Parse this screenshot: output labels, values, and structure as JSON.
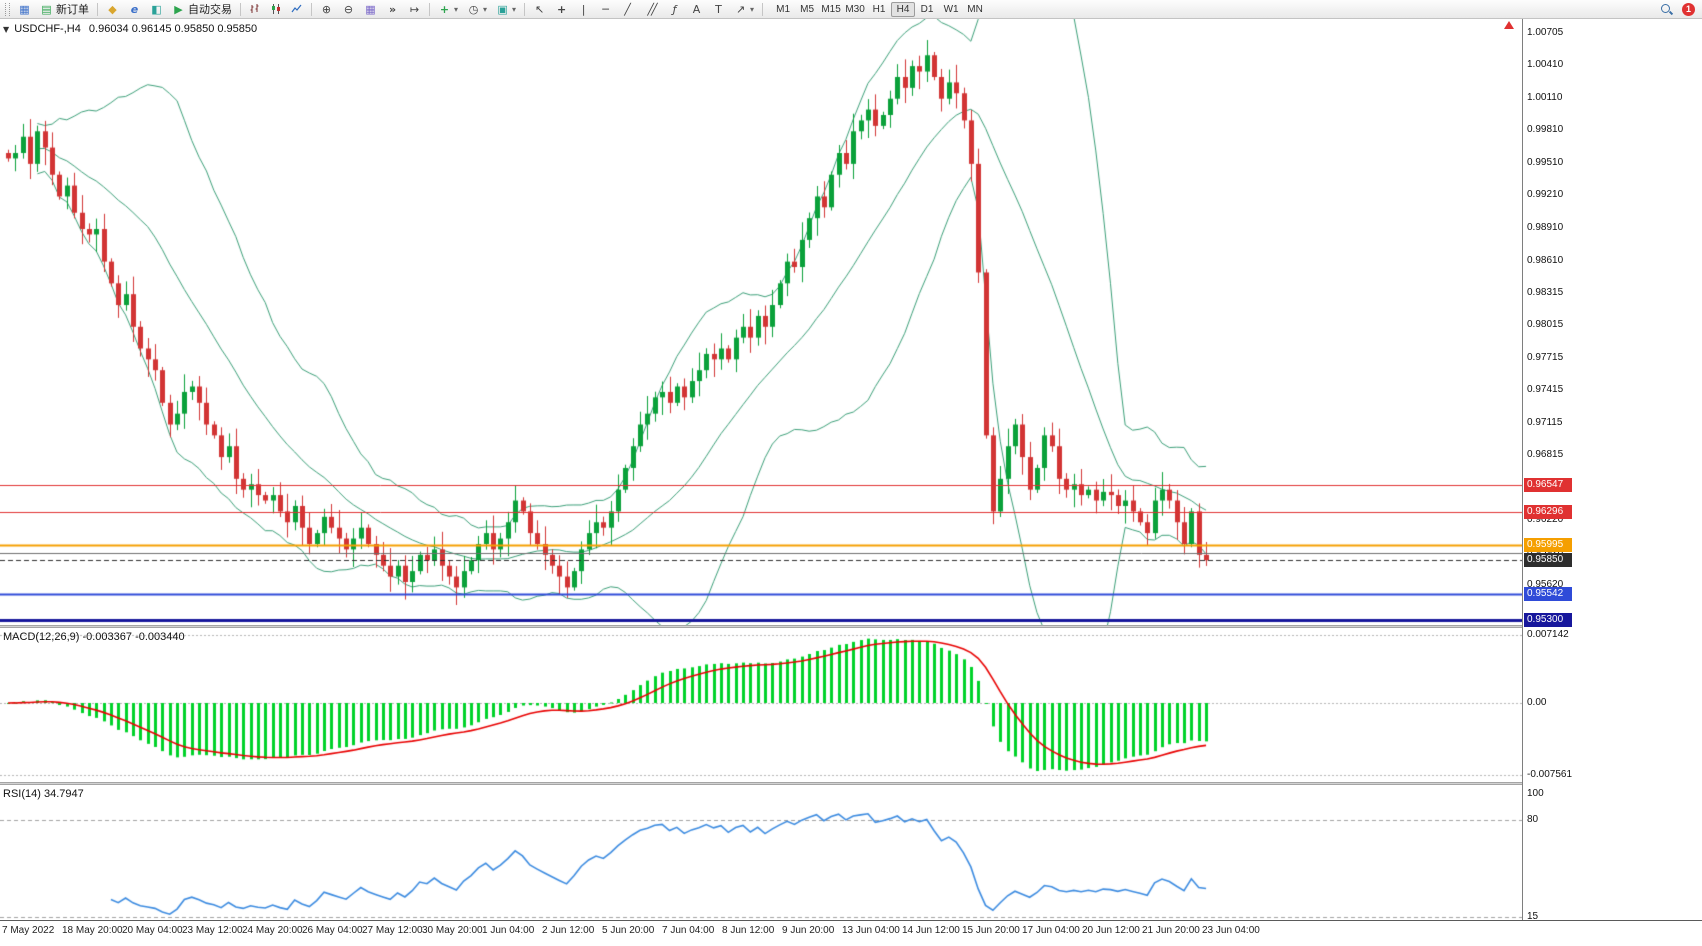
{
  "toolbar": {
    "new_order_label": "新订单",
    "autotrading_label": "自动交易",
    "text_tool_label": "A",
    "text_label_tool_label": "T",
    "timeframes": [
      "M1",
      "M5",
      "M15",
      "M30",
      "H1",
      "H4",
      "D1",
      "W1",
      "MN"
    ],
    "active_timeframe": "H4",
    "notification_count": "1"
  },
  "icons": {
    "chart_window": "▦",
    "new_order": "▤",
    "market_watch": "◆",
    "metaeditor": "e",
    "strategy_tester": "◧",
    "autotrading_play": "▶",
    "zoom_in": "⊕",
    "zoom_out": "⊖",
    "tile_windows": "▦",
    "auto_scroll": "»",
    "chart_shift": "↦",
    "add_indicator": "+",
    "periods_clock": "◷",
    "templates": "▣",
    "cursor": "↖",
    "crosshair": "+",
    "vertical_line": "|",
    "horizontal_line": "─",
    "trendline": "╱",
    "channel": "╱╱",
    "fibonacci": "ƒ",
    "arrows": "↗",
    "caret": "▾",
    "collapse": "▼"
  },
  "chart_data": [
    {
      "type": "candlestick",
      "title": "USDCHF-,H4",
      "ohlc_text": "0.96034 0.96145 0.95850 0.95850",
      "ohlc_display": {
        "open": "0.96034",
        "high": "0.96145",
        "low": "0.95850",
        "close": "0.95850"
      },
      "ylim": [
        0.953,
        1.00705
      ],
      "closes": [
        0.9955,
        0.996,
        0.9975,
        0.995,
        0.998,
        0.9965,
        0.994,
        0.992,
        0.993,
        0.9905,
        0.989,
        0.9885,
        0.989,
        0.986,
        0.984,
        0.982,
        0.983,
        0.98,
        0.978,
        0.977,
        0.976,
        0.973,
        0.971,
        0.972,
        0.974,
        0.9745,
        0.973,
        0.971,
        0.97,
        0.968,
        0.969,
        0.966,
        0.965,
        0.9655,
        0.9645,
        0.964,
        0.9645,
        0.963,
        0.962,
        0.9635,
        0.9615,
        0.96,
        0.961,
        0.9625,
        0.9615,
        0.9605,
        0.9595,
        0.9605,
        0.9615,
        0.96,
        0.959,
        0.958,
        0.957,
        0.958,
        0.9565,
        0.9575,
        0.959,
        0.9585,
        0.9595,
        0.958,
        0.957,
        0.956,
        0.9575,
        0.9585,
        0.96,
        0.961,
        0.9595,
        0.9605,
        0.962,
        0.964,
        0.963,
        0.961,
        0.96,
        0.959,
        0.958,
        0.957,
        0.956,
        0.9575,
        0.9595,
        0.961,
        0.962,
        0.9615,
        0.963,
        0.965,
        0.967,
        0.969,
        0.971,
        0.972,
        0.9735,
        0.974,
        0.973,
        0.9745,
        0.9735,
        0.975,
        0.976,
        0.9775,
        0.977,
        0.978,
        0.977,
        0.979,
        0.98,
        0.979,
        0.981,
        0.98,
        0.982,
        0.984,
        0.986,
        0.9855,
        0.988,
        0.99,
        0.992,
        0.991,
        0.994,
        0.996,
        0.995,
        0.998,
        0.999,
        1.0,
        0.9985,
        0.9995,
        1.001,
        1.003,
        1.002,
        1.004,
        1.0035,
        1.005,
        1.003,
        1.001,
        1.0025,
        1.0015,
        0.999,
        0.995,
        0.985,
        0.97,
        0.963,
        0.966,
        0.969,
        0.971,
        0.968,
        0.965,
        0.967,
        0.97,
        0.969,
        0.966,
        0.965,
        0.9655,
        0.9645,
        0.965,
        0.964,
        0.9648,
        0.9645,
        0.9635,
        0.964,
        0.963,
        0.962,
        0.961,
        0.964,
        0.965,
        0.964,
        0.962,
        0.96,
        0.963,
        0.959,
        0.9585
      ],
      "overlays": [
        {
          "name": "Bollinger Bands",
          "period": 20,
          "deviation": 2
        }
      ],
      "axis_ticks": [
        "1.00705",
        "1.00410",
        "1.00110",
        "0.99810",
        "0.99510",
        "0.99210",
        "0.98910",
        "0.98610",
        "0.98315",
        "0.98015",
        "0.97715",
        "0.97415",
        "0.97115",
        "0.96815",
        "0.96220",
        "0.95920",
        "0.95620"
      ],
      "levels": [
        {
          "price": 0.96547,
          "label": "0.96547",
          "color": "#e03131",
          "width": 1,
          "dash": false
        },
        {
          "price": 0.96296,
          "label": "0.96296",
          "color": "#e03131",
          "width": 1,
          "dash": false
        },
        {
          "price": 0.95995,
          "label": "0.95995",
          "color": "#f59f00",
          "width": 2,
          "dash": false
        },
        {
          "price": 0.9592,
          "label": null,
          "color": "#6e6e6e",
          "width": 1,
          "dash": false
        },
        {
          "price": 0.9585,
          "label": "0.95850",
          "color": "#2d2d2d",
          "width": 1,
          "dash": true
        },
        {
          "price": 0.95542,
          "label": "0.95542",
          "color": "#2f4bd8",
          "width": 2,
          "dash": false
        },
        {
          "price": 0.953,
          "label": "0.95300",
          "color": "#17179c",
          "width": 3,
          "dash": false
        }
      ],
      "time_labels": [
        "7 May 2022",
        "18 May 20:00",
        "20 May 04:00",
        "23 May 12:00",
        "24 May 20:00",
        "26 May 04:00",
        "27 May 12:00",
        "30 May 20:00",
        "1 Jun 04:00",
        "2 Jun 12:00",
        "5 Jun 20:00",
        "7 Jun 04:00",
        "8 Jun 12:00",
        "9 Jun 20:00",
        "13 Jun 04:00",
        "14 Jun 12:00",
        "15 Jun 20:00",
        "17 Jun 04:00",
        "20 Jun 12:00",
        "21 Jun 20:00",
        "23 Jun 04:00"
      ],
      "colors": {
        "bull": "#0aa13a",
        "bear": "#d23434",
        "bollinger": "#3a9e77"
      }
    },
    {
      "type": "macd",
      "full_label": "MACD(12,26,9) -0.003367 -0.003440",
      "params": {
        "fast": 12,
        "slow": 26,
        "signal": 9
      },
      "display_values": [
        "-0.003367",
        "-0.003440"
      ],
      "axis_ticks": [
        "0.007142",
        "0.00",
        "-0.007561"
      ],
      "ylim": [
        -0.007561,
        0.007142
      ],
      "histogram_color": "#00d22a",
      "signal_color": "#e80000"
    },
    {
      "type": "rsi",
      "full_label": "RSI(14) 34.7947",
      "period": 14,
      "display_value": "34.7947",
      "axis_ticks": [
        "100",
        "80",
        "15"
      ],
      "levels": [
        80,
        15
      ],
      "ylim": [
        0,
        100
      ],
      "line_color": "#3c8be0"
    }
  ]
}
